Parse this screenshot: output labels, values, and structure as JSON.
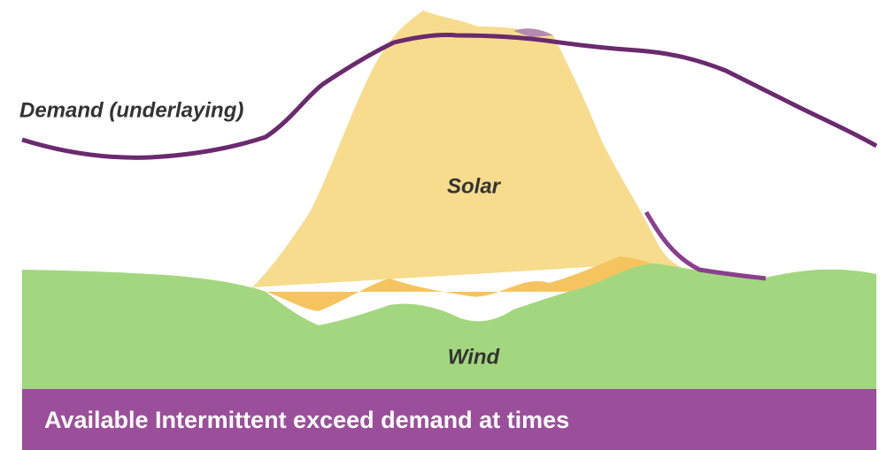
{
  "labels": {
    "demand": "Demand (underlaying)",
    "solar": "Solar",
    "wind": "Wind"
  },
  "banner": {
    "text": "Available Intermittent exceed demand at times"
  }
}
